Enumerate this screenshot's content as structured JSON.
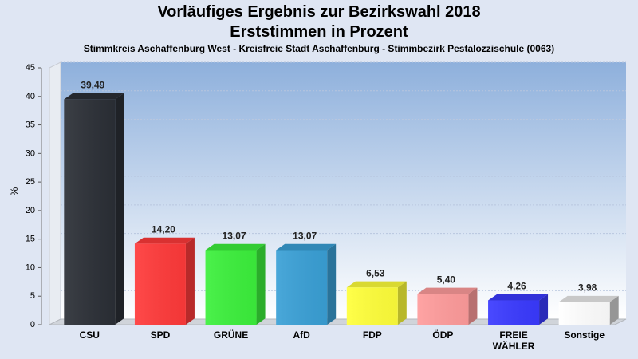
{
  "chart_data": {
    "type": "bar",
    "title": "Vorläufiges Ergebnis zur Bezirkswahl 2018",
    "title_line2": "Erststimmen in Prozent",
    "subtitle": "Stimmkreis Aschaffenburg West - Kreisfreie Stadt Aschaffenburg - Stimmbezirk Pestalozzischule (0063)",
    "ylabel": "%",
    "ylim": [
      0,
      45
    ],
    "yticks": [
      0,
      5,
      10,
      15,
      20,
      25,
      30,
      35,
      40,
      45
    ],
    "grid": true,
    "categories": [
      "CSU",
      "SPD",
      "GRÜNE",
      "AfD",
      "FDP",
      "ÖDP",
      "FREIE WÄHLER",
      "Sonstige"
    ],
    "category_lines": [
      [
        "CSU"
      ],
      [
        "SPD"
      ],
      [
        "GRÜNE"
      ],
      [
        "AfD"
      ],
      [
        "FDP"
      ],
      [
        "ÖDP"
      ],
      [
        "FREIE",
        "WÄHLER"
      ],
      [
        "Sonstige"
      ]
    ],
    "values": [
      39.49,
      14.2,
      13.07,
      13.07,
      6.53,
      5.4,
      4.26,
      3.98
    ],
    "value_labels": [
      "39,49",
      "14,20",
      "13,07",
      "13,07",
      "6,53",
      "5,40",
      "4,26",
      "3,98"
    ],
    "colors": [
      "#2b2f36",
      "#ff3a3a",
      "#3cf03c",
      "#3aa0d6",
      "#ffff3a",
      "#ff9c9c",
      "#3a3aff",
      "#ffffff"
    ]
  }
}
